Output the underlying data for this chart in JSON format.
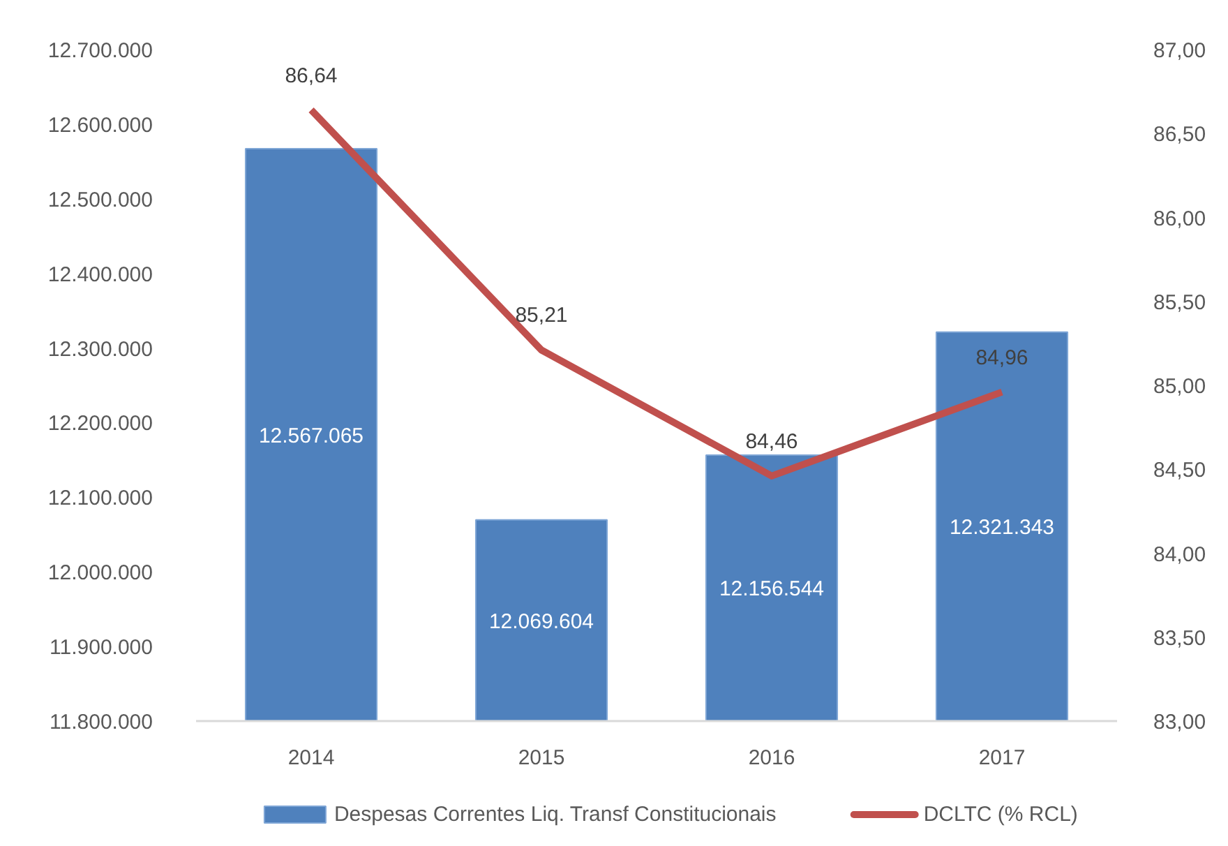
{
  "chart_data": {
    "type": "bar",
    "categories": [
      "2014",
      "2015",
      "2016",
      "2017"
    ],
    "series": [
      {
        "name": "Despesas Correntes Liq. Transf Constitucionais",
        "color": "#4f81bd",
        "values": [
          12567065,
          12069604,
          12156544,
          12321343
        ],
        "value_labels": [
          "12.567.065",
          "12.069.604",
          "12.156.544",
          "12.321.343"
        ]
      },
      {
        "name": "DCLTC (% RCL)",
        "type": "line",
        "axis": "y2",
        "color": "#c0504d",
        "values": [
          86.64,
          85.21,
          84.46,
          84.96
        ],
        "value_labels": [
          "86,64",
          "85,21",
          "84,46",
          "84,96"
        ]
      }
    ],
    "ylim": [
      11800000,
      12700000
    ],
    "yticks": [
      {
        "value": 11800000,
        "label": "11.800.000"
      },
      {
        "value": 11900000,
        "label": "11.900.000"
      },
      {
        "value": 12000000,
        "label": "12.000.000"
      },
      {
        "value": 12100000,
        "label": "12.100.000"
      },
      {
        "value": 12200000,
        "label": "12.200.000"
      },
      {
        "value": 12300000,
        "label": "12.300.000"
      },
      {
        "value": 12400000,
        "label": "12.400.000"
      },
      {
        "value": 12500000,
        "label": "12.500.000"
      },
      {
        "value": 12600000,
        "label": "12.600.000"
      },
      {
        "value": 12700000,
        "label": "12.700.000"
      }
    ],
    "y2lim": [
      83,
      87
    ],
    "y2ticks": [
      {
        "value": 83,
        "label": "83,00"
      },
      {
        "value": 83.5,
        "label": "83,50"
      },
      {
        "value": 84,
        "label": "84,00"
      },
      {
        "value": 84.5,
        "label": "84,50"
      },
      {
        "value": 85,
        "label": "85,00"
      },
      {
        "value": 85.5,
        "label": "85,50"
      },
      {
        "value": 86,
        "label": "86,00"
      },
      {
        "value": 86.5,
        "label": "86,50"
      },
      {
        "value": 87,
        "label": "87,00"
      }
    ],
    "grid": false,
    "legend": "bottom"
  }
}
